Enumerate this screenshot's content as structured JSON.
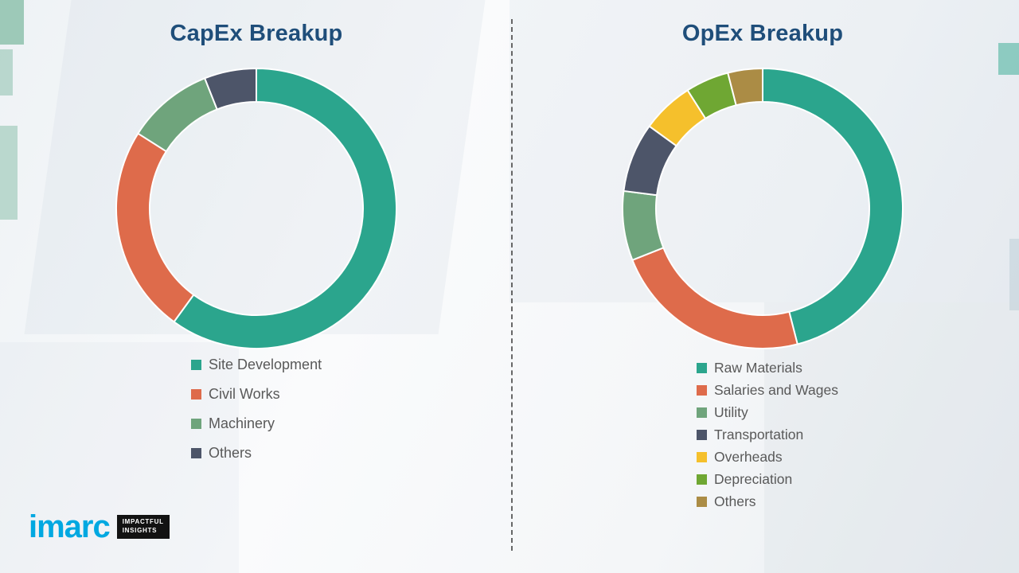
{
  "chart_data": [
    {
      "type": "pie",
      "variant": "donut",
      "title": "CapEx Breakup",
      "labels": [
        "Site Development",
        "Civil Works",
        "Machinery",
        "Others"
      ],
      "values": [
        60,
        24,
        10,
        6
      ],
      "colors": [
        "#2BA58D",
        "#DE6B4B",
        "#6FA47C",
        "#4D5569"
      ],
      "start_angle_deg": 0,
      "direction": "clockwise",
      "legend_position": "below-left",
      "values_note": "percent, estimated from arc angles"
    },
    {
      "type": "pie",
      "variant": "donut",
      "title": "OpEx Breakup",
      "labels": [
        "Raw Materials",
        "Salaries and Wages",
        "Utility",
        "Transportation",
        "Overheads",
        "Depreciation",
        "Others"
      ],
      "values": [
        46,
        23,
        8,
        8,
        6,
        5,
        4
      ],
      "colors": [
        "#2BA58D",
        "#DE6B4B",
        "#6FA47C",
        "#4D5569",
        "#F5C02C",
        "#6FA733",
        "#AB8C45"
      ],
      "start_angle_deg": 0,
      "direction": "clockwise",
      "legend_position": "below-left",
      "values_note": "percent, estimated from arc angles"
    }
  ],
  "logo": {
    "brand": "imarc",
    "tagline_line1": "IMPACTFUL",
    "tagline_line2": "INSIGHTS",
    "brand_color": "#00A8E1"
  }
}
